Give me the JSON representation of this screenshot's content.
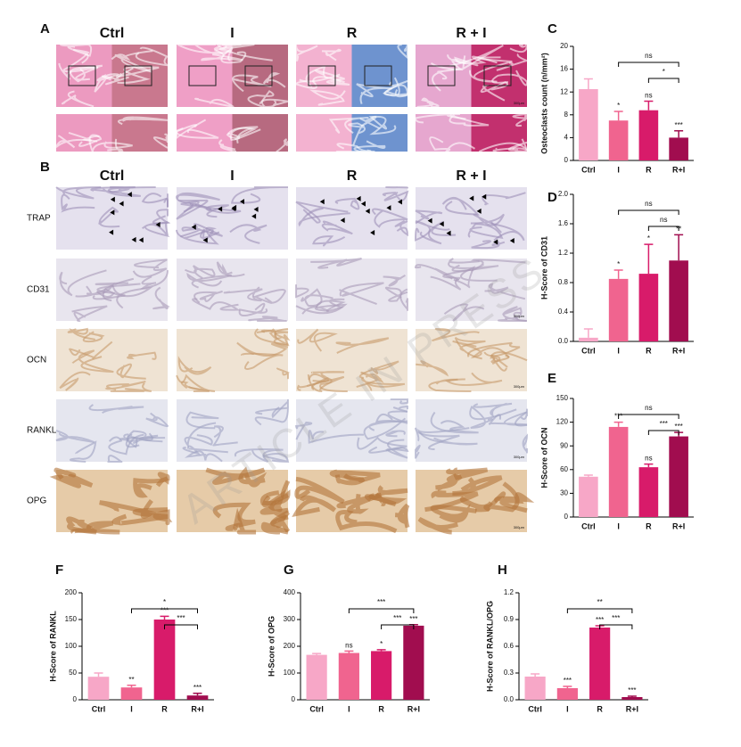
{
  "figure": {
    "panel_A": {
      "label": "A",
      "columns": [
        "Ctrl",
        "I",
        "R",
        "R + I"
      ]
    },
    "panel_B": {
      "label": "B",
      "columns": [
        "Ctrl",
        "I",
        "R",
        "R + I"
      ],
      "rows": [
        "TRAP",
        "CD31",
        "OCN",
        "RANKL",
        "OPG"
      ]
    },
    "scale_bar": "300μm",
    "watermark": "ARTICLE IN PRESS"
  },
  "chart_data": [
    {
      "type": "bar",
      "label": "C",
      "y_label": "Osteoclasts count (n/mm²)",
      "categories": [
        "Ctrl",
        "I",
        "R",
        "R+I"
      ],
      "values": [
        12.5,
        7,
        8.8,
        4
      ],
      "errors": [
        1.8,
        1.6,
        1.6,
        1.2
      ],
      "colors": [
        "#f7a7c7",
        "#f0648f",
        "#d81b6a",
        "#a10d4f"
      ],
      "significance": [
        null,
        "*",
        "ns",
        "***"
      ],
      "comparisons": [
        {
          "between": [
            "I",
            "R+I"
          ],
          "label": "ns"
        },
        {
          "between": [
            "R",
            "R+I"
          ],
          "label": "*"
        }
      ],
      "ylim": [
        0,
        20
      ],
      "yticks": [
        0,
        4,
        8,
        12,
        16,
        20
      ]
    },
    {
      "type": "bar",
      "label": "D",
      "y_label": "H-Score of CD31",
      "categories": [
        "Ctrl",
        "I",
        "R",
        "R+I"
      ],
      "values": [
        0.05,
        0.85,
        0.92,
        1.1
      ],
      "errors": [
        0.12,
        0.12,
        0.4,
        0.35
      ],
      "colors": [
        "#f7a7c7",
        "#f0648f",
        "#d81b6a",
        "#a10d4f"
      ],
      "significance": [
        null,
        "*",
        "*",
        "**"
      ],
      "comparisons": [
        {
          "between": [
            "I",
            "R+I"
          ],
          "label": "ns"
        },
        {
          "between": [
            "R",
            "R+I"
          ],
          "label": "ns"
        }
      ],
      "ylim": [
        0,
        2
      ],
      "yticks": [
        {
          "value": 0,
          "label": "0.0"
        },
        0.4,
        0.8,
        1.2,
        1.6,
        {
          "value": 2,
          "label": "2.0"
        }
      ]
    },
    {
      "type": "bar",
      "label": "E",
      "y_label": "H-Score of OCN",
      "categories": [
        "Ctrl",
        "I",
        "R",
        "R+I"
      ],
      "values": [
        51,
        114,
        63,
        102
      ],
      "errors": [
        2,
        6,
        4,
        5
      ],
      "colors": [
        "#f7a7c7",
        "#f0648f",
        "#d81b6a",
        "#a10d4f"
      ],
      "significance": [
        null,
        "***",
        "ns",
        "***"
      ],
      "comparisons": [
        {
          "between": [
            "I",
            "R+I"
          ],
          "label": "ns"
        },
        {
          "between": [
            "R",
            "R+I"
          ],
          "label": "***"
        }
      ],
      "ylim": [
        0,
        150
      ],
      "yticks": [
        0,
        30,
        60,
        90,
        120,
        150
      ]
    },
    {
      "type": "bar",
      "label": "F",
      "y_label": "H-Score of RANKL",
      "categories": [
        "Ctrl",
        "I",
        "R",
        "R+I"
      ],
      "values": [
        43,
        23,
        150,
        8
      ],
      "errors": [
        7,
        4,
        6,
        4
      ],
      "colors": [
        "#f7a7c7",
        "#f0648f",
        "#d81b6a",
        "#a10d4f"
      ],
      "significance": [
        null,
        "**",
        "***",
        "***"
      ],
      "comparisons": [
        {
          "between": [
            "I",
            "R+I"
          ],
          "label": "*"
        },
        {
          "between": [
            "R",
            "R+I"
          ],
          "label": "***"
        }
      ],
      "ylim": [
        0,
        200
      ],
      "yticks": [
        0,
        50,
        100,
        150,
        200
      ]
    },
    {
      "type": "bar",
      "label": "G",
      "y_label": "H-Score of OPG",
      "categories": [
        "Ctrl",
        "I",
        "R",
        "R+I"
      ],
      "values": [
        168,
        175,
        182,
        277
      ],
      "errors": [
        5,
        7,
        5,
        4
      ],
      "colors": [
        "#f7a7c7",
        "#f0648f",
        "#d81b6a",
        "#a10d4f"
      ],
      "significance": [
        null,
        "ns",
        "*",
        "***"
      ],
      "comparisons": [
        {
          "between": [
            "I",
            "R+I"
          ],
          "label": "***"
        },
        {
          "between": [
            "R",
            "R+I"
          ],
          "label": "***"
        }
      ],
      "ylim": [
        0,
        400
      ],
      "yticks": [
        0,
        100,
        200,
        300,
        400
      ]
    },
    {
      "type": "bar",
      "label": "H",
      "y_label": "H-Score of RANKL/OPG",
      "categories": [
        "Ctrl",
        "I",
        "R",
        "R+I"
      ],
      "values": [
        0.26,
        0.13,
        0.81,
        0.03
      ],
      "errors": [
        0.03,
        0.02,
        0.02,
        0.01
      ],
      "colors": [
        "#f7a7c7",
        "#f0648f",
        "#d81b6a",
        "#a10d4f"
      ],
      "significance": [
        null,
        "***",
        "***",
        "***"
      ],
      "comparisons": [
        {
          "between": [
            "I",
            "R+I"
          ],
          "label": "**"
        },
        {
          "between": [
            "R",
            "R+I"
          ],
          "label": "***"
        }
      ],
      "ylim": [
        0,
        1.2
      ],
      "yticks": [
        {
          "value": 0,
          "label": "0.0"
        },
        0.3,
        0.6,
        0.9,
        1.2
      ]
    }
  ]
}
